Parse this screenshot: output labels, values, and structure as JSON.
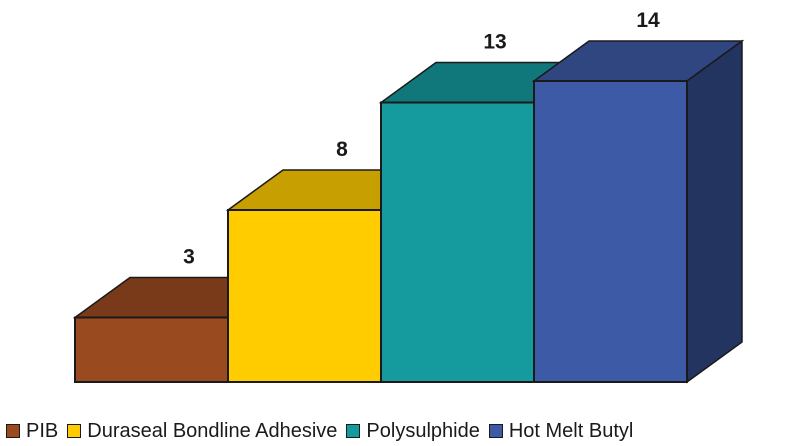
{
  "chart_data": {
    "type": "bar",
    "style": "3d-stepped",
    "categories": [
      "PIB",
      "Duraseal Bondline Adhesive",
      "Polysulphide",
      "Hot Melt Butyl"
    ],
    "series": [
      {
        "values": [
          3,
          8,
          13,
          14
        ],
        "colors": [
          "#9a4a1f",
          "#ffcc00",
          "#159a9e",
          "#3c5aa6"
        ]
      }
    ],
    "data_labels": [
      "3",
      "8",
      "13",
      "14"
    ],
    "ylim": [
      0,
      14
    ],
    "grid": false,
    "legend": {
      "placement": "bottom",
      "entries": [
        "PIB",
        "Duraseal Bondline Adhesive",
        "Polysulphide",
        "Hot Melt Butyl"
      ]
    },
    "title": "",
    "xlabel": "",
    "ylabel": ""
  }
}
